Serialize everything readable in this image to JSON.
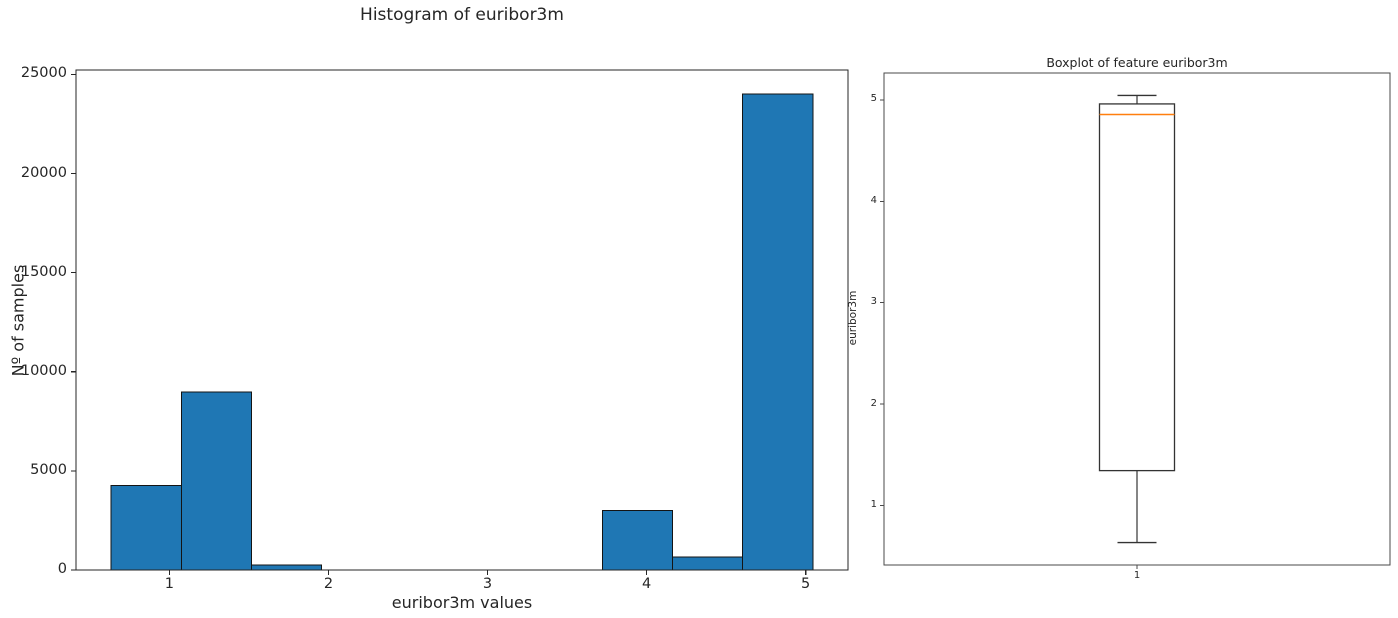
{
  "figure": {
    "background": "#ffffff",
    "text_color": "#262626"
  },
  "colors": {
    "bar_fill": "#1f77b4",
    "bar_edge": "#141414",
    "hist_frame": "#262626",
    "box_frame": "#4a4a4a",
    "box_line": "#333333",
    "median_line": "#ff7f0e"
  },
  "chart_data": [
    {
      "type": "bar",
      "subtype": "histogram",
      "title": "Histogram of euribor3m",
      "xlabel": "euribor3m values",
      "ylabel": "Nº of samples",
      "bin_edges": [
        0.634,
        1.075,
        1.516,
        1.957,
        2.398,
        2.84,
        3.281,
        3.722,
        4.163,
        4.604,
        5.045
      ],
      "counts": [
        4255,
        8990,
        260,
        0,
        0,
        0,
        0,
        3007,
        655,
        24021
      ],
      "x_ticks": [
        1,
        2,
        3,
        4,
        5
      ],
      "y_ticks": [
        0,
        5000,
        10000,
        15000,
        20000,
        25000
      ],
      "xlim": [
        0.413,
        5.266
      ],
      "ylim": [
        0,
        25222
      ],
      "grid": false,
      "legend": null
    },
    {
      "type": "boxplot",
      "title": "Boxplot of feature euribor3m",
      "ylabel": "euribor3m",
      "x_tick_labels": [
        "1"
      ],
      "stats": {
        "whisker_low": 0.634,
        "q1": 1.344,
        "median": 4.857,
        "q3": 4.961,
        "whisker_high": 5.045
      },
      "y_ticks": [
        1,
        2,
        3,
        4,
        5
      ],
      "ylim": [
        0.413,
        5.266
      ],
      "grid": false,
      "legend": null
    }
  ]
}
